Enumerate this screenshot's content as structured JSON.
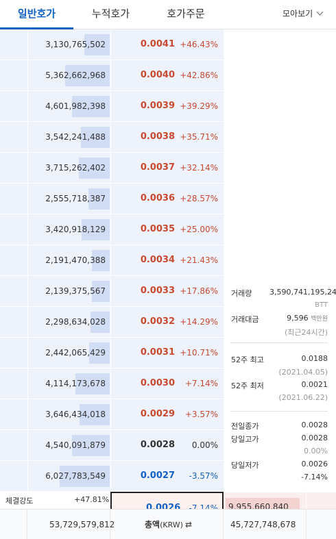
{
  "tabs": [
    {
      "label": "일반호가",
      "active": true
    },
    {
      "label": "누적호가",
      "active": false
    },
    {
      "label": "호가주문",
      "active": false
    }
  ],
  "view_select": {
    "label": "모아보기",
    "icon": "chevron-down-icon"
  },
  "asks": [
    {
      "quantity": "3,130,765,502",
      "price": "0.0041",
      "rate": "+46.43%",
      "color": "red",
      "depth": 0.31
    },
    {
      "quantity": "5,362,662,968",
      "price": "0.0040",
      "rate": "+42.86%",
      "color": "red",
      "depth": 0.55
    },
    {
      "quantity": "4,601,982,398",
      "price": "0.0039",
      "rate": "+39.29%",
      "color": "red",
      "depth": 0.47
    },
    {
      "quantity": "3,542,241,488",
      "price": "0.0038",
      "rate": "+35.71%",
      "color": "red",
      "depth": 0.36
    },
    {
      "quantity": "3,715,262,402",
      "price": "0.0037",
      "rate": "+32.14%",
      "color": "red",
      "depth": 0.38
    },
    {
      "quantity": "2,555,718,387",
      "price": "0.0036",
      "rate": "+28.57%",
      "color": "red",
      "depth": 0.26
    },
    {
      "quantity": "3,420,918,129",
      "price": "0.0035",
      "rate": "+25.00%",
      "color": "red",
      "depth": 0.35
    },
    {
      "quantity": "2,191,470,388",
      "price": "0.0034",
      "rate": "+21.43%",
      "color": "red",
      "depth": 0.22
    },
    {
      "quantity": "2,139,375,567",
      "price": "0.0033",
      "rate": "+17.86%",
      "color": "red",
      "depth": 0.22
    },
    {
      "quantity": "2,298,634,028",
      "price": "0.0032",
      "rate": "+14.29%",
      "color": "red",
      "depth": 0.24
    },
    {
      "quantity": "2,442,065,429",
      "price": "0.0031",
      "rate": "+10.71%",
      "color": "red",
      "depth": 0.25
    },
    {
      "quantity": "4,114,173,678",
      "price": "0.0030",
      "rate": "+7.14%",
      "color": "red",
      "depth": 0.42
    },
    {
      "quantity": "3,646,434,018",
      "price": "0.0029",
      "rate": "+3.57%",
      "color": "red",
      "depth": 0.37
    },
    {
      "quantity": "4,540,091,879",
      "price": "0.0028",
      "rate": "0.00%",
      "color": "neutral",
      "depth": 0.47
    },
    {
      "quantity": "6,027,783,549",
      "price": "0.0027",
      "rate": "-3.57%",
      "color": "blue",
      "depth": 0.62
    }
  ],
  "info": {
    "volume_label": "거래량",
    "volume_value": "3,590,741,195,24",
    "volume_unit": "BTT",
    "amount_label": "거래대금",
    "amount_value": "9,596",
    "amount_unit": "백만원",
    "amount_note": "(최근24시간)",
    "high52_label": "52주 최고",
    "high52_value": "0.0188",
    "high52_date": "(2021.04.05)",
    "low52_label": "52주 최저",
    "low52_value": "0.0021",
    "low52_date": "(2021.06.22)",
    "prev_close_label": "전일종가",
    "prev_close_value": "0.0028",
    "day_high_label": "당일고가",
    "day_high_value": "0.0028",
    "day_high_rate": "0.00%",
    "day_low_label": "당일저가",
    "day_low_value": "0.0026",
    "day_low_rate": "-7.14%"
  },
  "strength": {
    "label": "체결강도",
    "value": "+47.81%"
  },
  "current": {
    "price": "0.0026",
    "rate": "-7.14%",
    "bid_quantity": "9,955,660,840"
  },
  "footer": {
    "ask_total": "53,729,579,812",
    "total_label": "총액",
    "total_unit": "(KRW)",
    "swap_icon": "swap-icon",
    "bid_total": "45,727,748,678"
  }
}
